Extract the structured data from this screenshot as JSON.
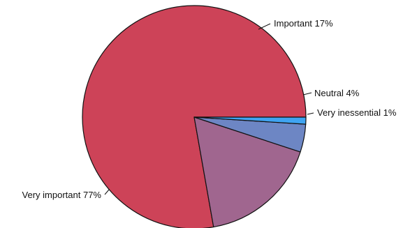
{
  "chart_data": {
    "type": "pie",
    "title": "",
    "slices": [
      {
        "name": "Very important",
        "value": 77,
        "label": "Very important 77%",
        "color": "#cd4358"
      },
      {
        "name": "Important",
        "value": 17,
        "label": "Important 17%",
        "color": "#a0668f"
      },
      {
        "name": "Neutral",
        "value": 4,
        "label": "Neutral 4%",
        "color": "#6d86c4"
      },
      {
        "name": "Very inessential",
        "value": 1,
        "label": "Very inessential 1%",
        "color": "#3fa4f2"
      }
    ],
    "legend": "none",
    "start_angle_deg": 0,
    "direction": "counterclockwise"
  }
}
